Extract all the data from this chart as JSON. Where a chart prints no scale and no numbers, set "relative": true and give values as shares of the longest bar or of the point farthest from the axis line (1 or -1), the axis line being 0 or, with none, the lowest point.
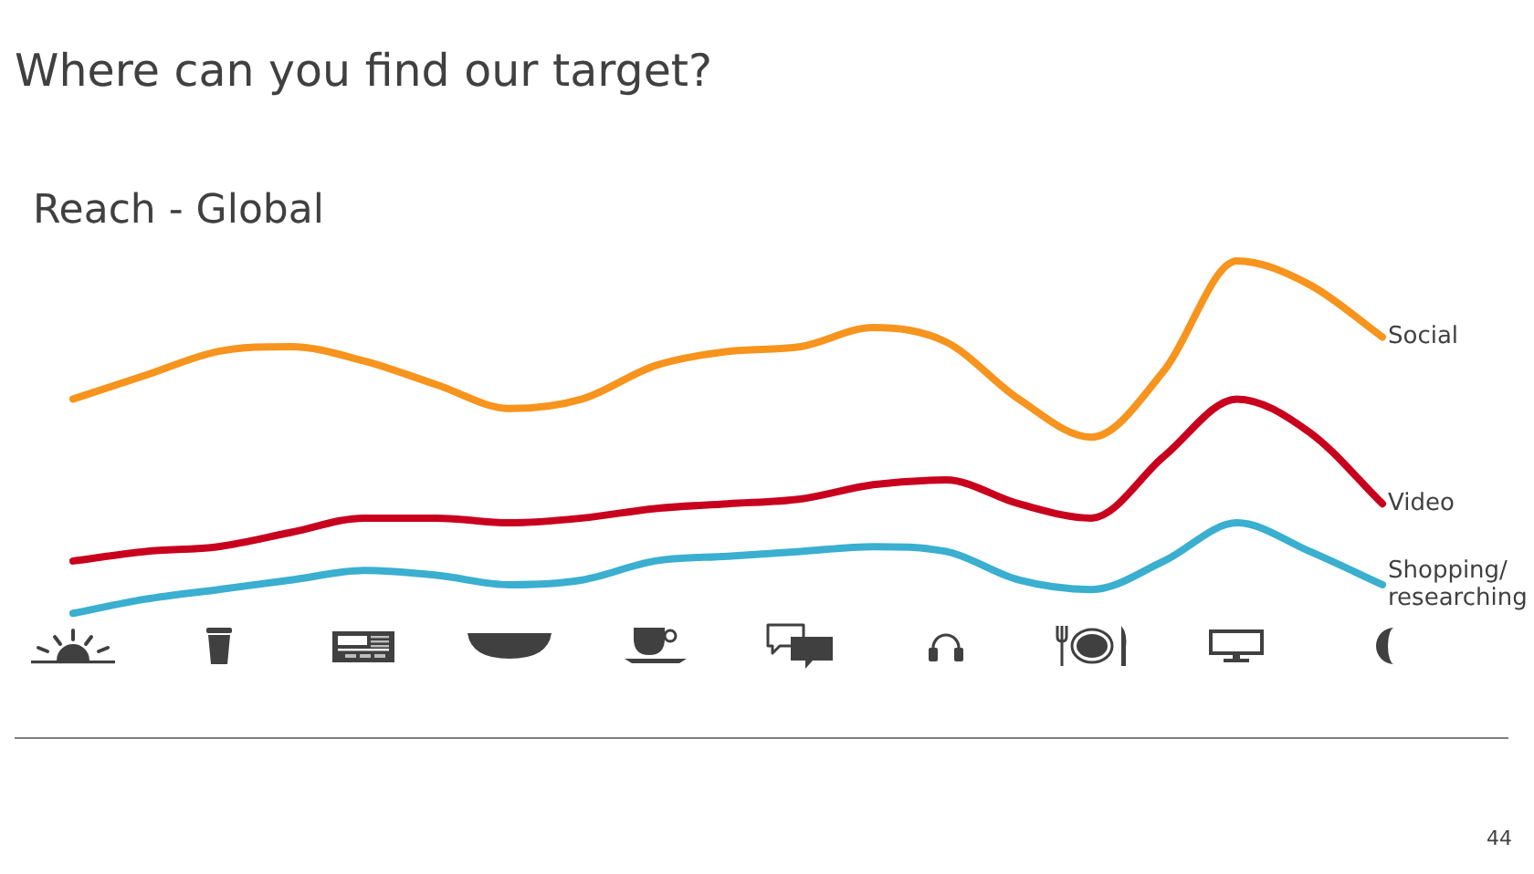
{
  "chart_data": {
    "type": "line",
    "title": "Where can you find our target?",
    "subtitle": "Reach - Global",
    "categories": [
      null,
      null,
      null,
      null,
      null,
      null,
      null,
      null,
      null,
      null,
      null,
      null,
      null,
      null,
      null,
      null,
      null,
      null,
      null
    ],
    "relative": true,
    "series": [
      {
        "name": "Social",
        "color": "#f7941d",
        "values": [
          0.71,
          0.76,
          0.81,
          0.82,
          0.79,
          0.74,
          0.69,
          0.71,
          0.78,
          0.81,
          0.82,
          0.86,
          0.83,
          0.71,
          0.63,
          0.77,
          1,
          0.95,
          0.84
        ]
      },
      {
        "name": "Video",
        "color": "#c8001e",
        "values": [
          0.37,
          0.39,
          0.4,
          0.43,
          0.46,
          0.46,
          0.45,
          0.46,
          0.48,
          0.49,
          0.5,
          0.53,
          0.54,
          0.49,
          0.46,
          0.59,
          0.71,
          0.64,
          0.49
        ]
      },
      {
        "name": "Shopping/researching",
        "color": "#3aafd0",
        "values": [
          0.26,
          0.29,
          0.31,
          0.33,
          0.35,
          0.34,
          0.32,
          0.33,
          0.37,
          0.38,
          0.39,
          0.4,
          0.39,
          0.33,
          0.31,
          0.37,
          0.45,
          0.39,
          0.32
        ]
      }
    ],
    "annotations": [
      "44"
    ]
  }
}
